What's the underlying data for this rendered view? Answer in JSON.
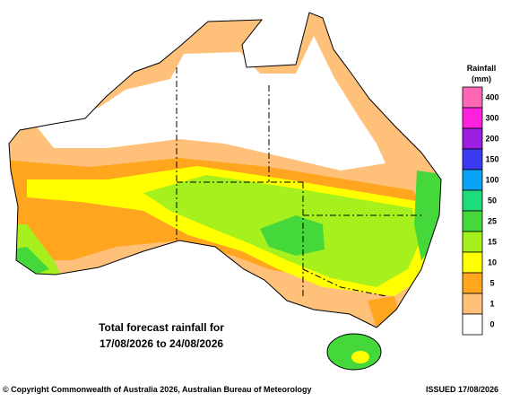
{
  "legend": {
    "title": "Rainfall",
    "unit": "(mm)",
    "items": [
      {
        "label": "400",
        "color": "#ff66b3"
      },
      {
        "label": "300",
        "color": "#ff22dd"
      },
      {
        "label": "200",
        "color": "#9a1fe0"
      },
      {
        "label": "150",
        "color": "#3a3af0"
      },
      {
        "label": "100",
        "color": "#0aa2f5"
      },
      {
        "label": "50",
        "color": "#1edc7a"
      },
      {
        "label": "25",
        "color": "#44d83a"
      },
      {
        "label": "15",
        "color": "#a6f01e"
      },
      {
        "label": "10",
        "color": "#ffff00"
      },
      {
        "label": "5",
        "color": "#ffa51e"
      },
      {
        "label": "1",
        "color": "#ffc07a"
      },
      {
        "label": "0",
        "color": "#ffffff"
      }
    ]
  },
  "map": {
    "annotation": [
      "Total forecast rainfall for",
      "17/08/2026 to 24/08/2026"
    ]
  },
  "footer": {
    "copyright": "© Copyright Commonwealth of Australia 2026, Australian Bureau of Meteorology",
    "issued": "ISSUED 17/08/2026"
  }
}
